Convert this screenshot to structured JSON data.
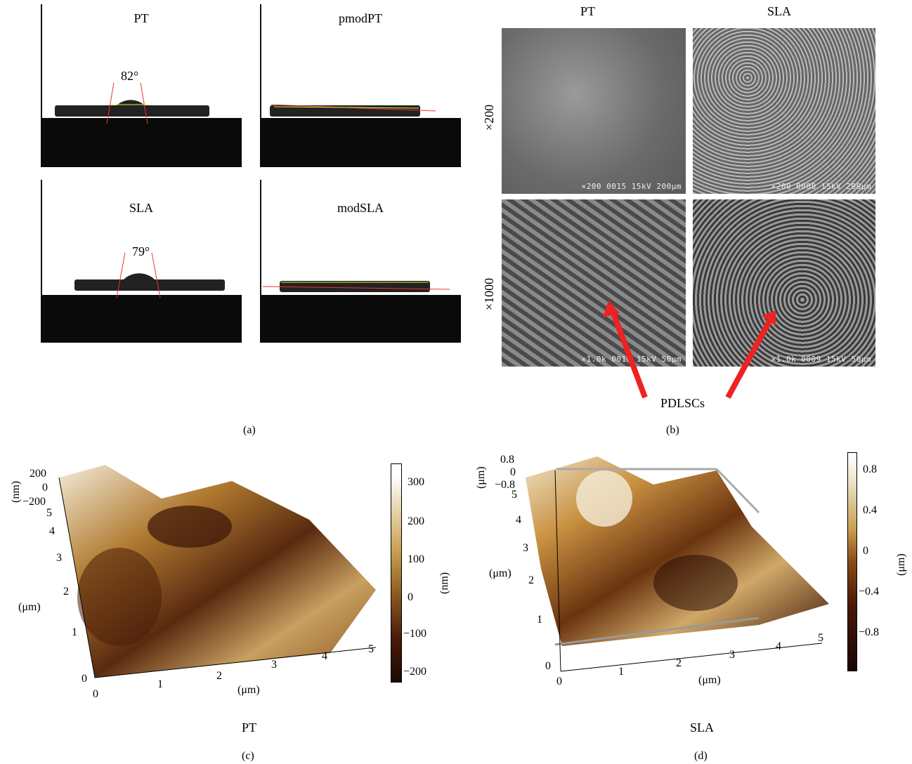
{
  "panel_a": {
    "label": "(a)",
    "images": [
      {
        "title": "PT",
        "angle": "82°"
      },
      {
        "title": "pmodPT",
        "angle": ""
      },
      {
        "title": "SLA",
        "angle": "79°"
      },
      {
        "title": "modSLA",
        "angle": ""
      }
    ]
  },
  "panel_b": {
    "label": "(b)",
    "col_titles": [
      "PT",
      "SLA"
    ],
    "row_titles": [
      "×200",
      "×1000"
    ],
    "scale_bars": [
      "×200  0015  15kV 200μm",
      "×200  0008  15kV 200μm",
      "×1.0k 0019  15kV  50μm",
      "×1.0k 0009  15kV  50μm"
    ],
    "annotation": "PDLSCs"
  },
  "panel_c": {
    "label": "(c)",
    "caption": "PT",
    "z_ticks": [
      "200",
      "0",
      "−200"
    ],
    "z_unit": "(nm)",
    "y_ticks": [
      "5",
      "4",
      "3",
      "2",
      "1",
      "0"
    ],
    "y_unit": "(μm)",
    "x_ticks": [
      "0",
      "1",
      "2",
      "3",
      "4",
      "5"
    ],
    "x_unit": "(μm)",
    "colorbar_ticks": [
      "300",
      "200",
      "100",
      "0",
      "−100",
      "−200"
    ],
    "colorbar_unit": "(nm)"
  },
  "panel_d": {
    "label": "(d)",
    "caption": "SLA",
    "z_ticks": [
      "0.8",
      "0",
      "−0.8"
    ],
    "z_unit": "(μm)",
    "y_ticks": [
      "5",
      "4",
      "3",
      "2",
      "1",
      "0"
    ],
    "y_unit": "(μm)",
    "x_ticks": [
      "0",
      "1",
      "2",
      "3",
      "4",
      "5"
    ],
    "x_unit": "(μm)",
    "colorbar_ticks": [
      "0.8",
      "0.4",
      "0",
      "−0.4",
      "−0.8"
    ],
    "colorbar_unit": "(μm)"
  }
}
